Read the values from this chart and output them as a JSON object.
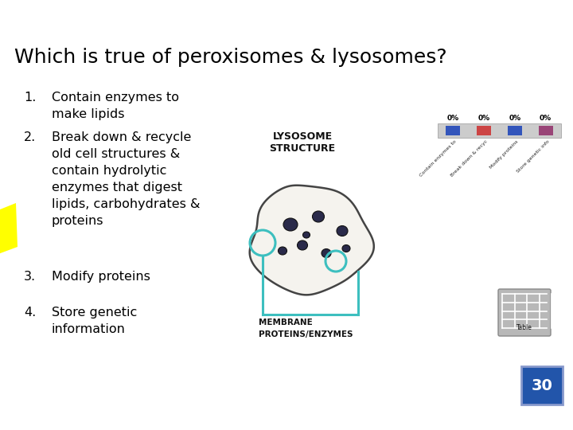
{
  "title": "Which is true of peroxisomes & lysosomes?",
  "title_fontsize": 18,
  "background_color": "#ffffff",
  "text_color": "#000000",
  "items": [
    "Contain enzymes to\nmake lipids",
    "Break down & recycle\nold cell structures &\ncontain hydrolytic\nenzymes that digest\nlipids, carbohydrates &\nproteins",
    "Modify proteins",
    "Store genetic\ninformation"
  ],
  "item_fontsize": 11.5,
  "highlight_color": "#ffff00",
  "badge_number": "30",
  "badge_color": "#2255aa",
  "badge_text_color": "#ffffff",
  "badge_fontsize": 14,
  "teal_color": "#3dbfbf",
  "poll_colors": [
    "#3355bb",
    "#cc4444",
    "#3355bb",
    "#994477"
  ],
  "poll_labels": [
    "0%",
    "0%",
    "0%",
    "0%"
  ]
}
